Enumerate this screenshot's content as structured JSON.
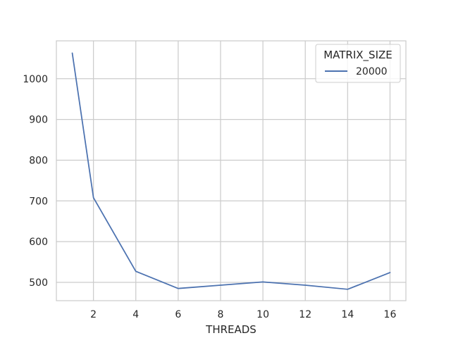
{
  "chart_data": {
    "type": "line",
    "xlabel": "THREADS",
    "ylabel": "",
    "xlim": [
      0.25,
      16.75
    ],
    "ylim": [
      455,
      1093
    ],
    "x_ticks": [
      2,
      4,
      6,
      8,
      10,
      12,
      14,
      16
    ],
    "y_ticks": [
      500,
      600,
      700,
      800,
      900,
      1000
    ],
    "grid": true,
    "legend": {
      "title": "MATRIX_SIZE",
      "placement": "top-right"
    },
    "series": [
      {
        "name": "20000",
        "color": "#4c72b0",
        "x": [
          1,
          2,
          4,
          6,
          8,
          10,
          12,
          14,
          16
        ],
        "y": [
          1063,
          708,
          527,
          485,
          493,
          501,
          493,
          483,
          524
        ]
      }
    ]
  }
}
